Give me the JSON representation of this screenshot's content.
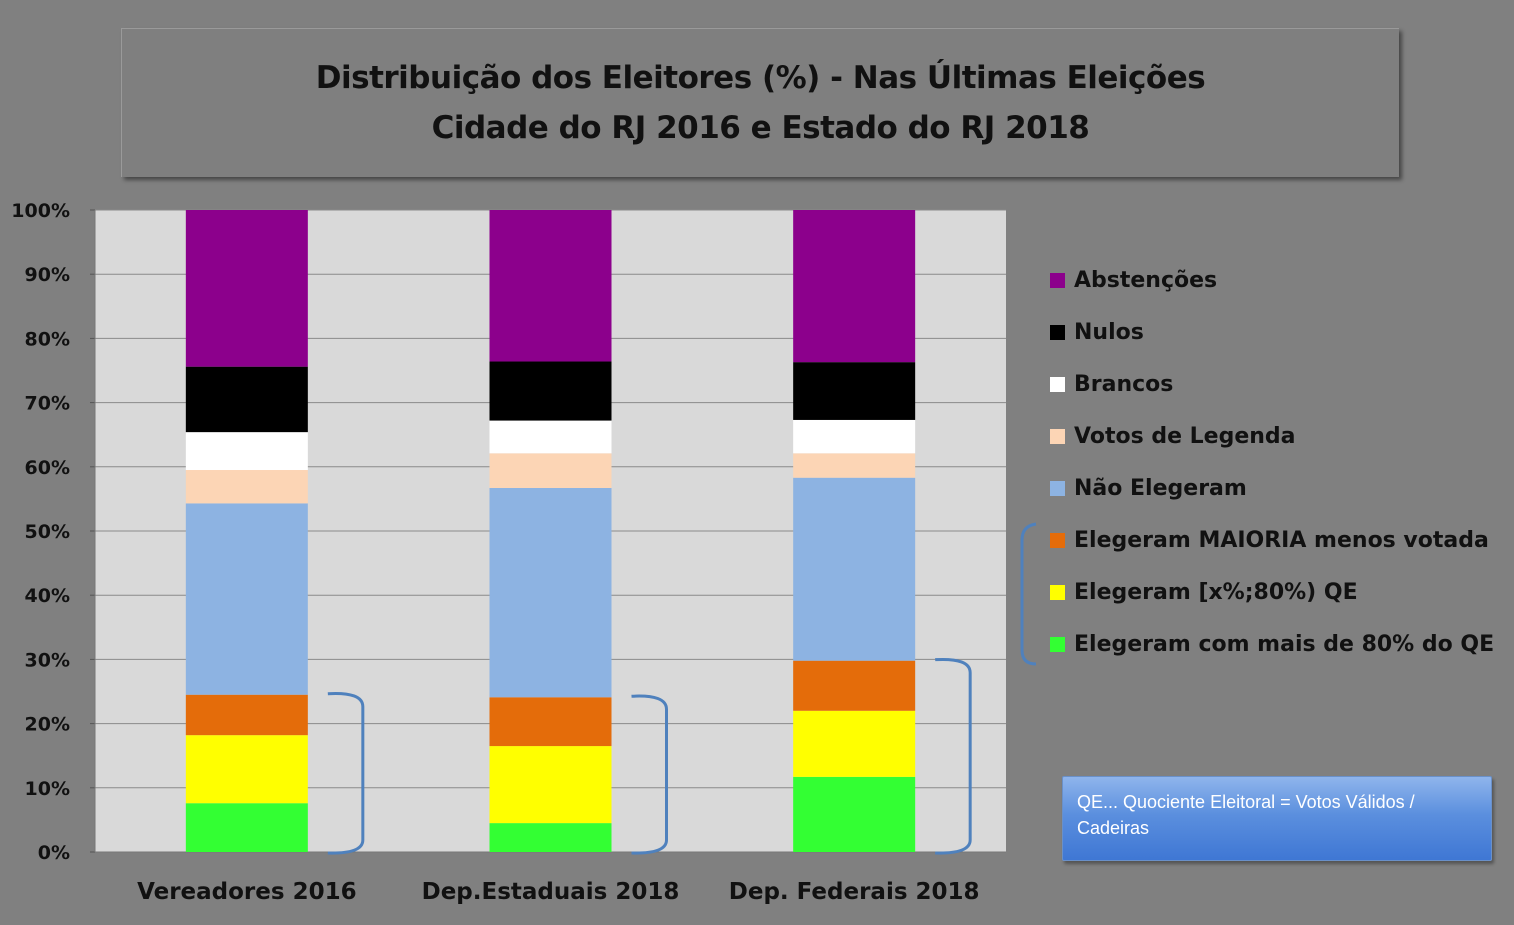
{
  "chart_title": {
    "line1": "Distribuição dos Eleitores (%) - Nas Últimas Eleições",
    "line2": "Cidade do RJ 2016 e Estado do RJ 2018"
  },
  "chart_data": {
    "type": "bar",
    "stacked": true,
    "categories": [
      "Vereadores 2016",
      "Dep.Estaduais 2018",
      "Dep. Federais 2018"
    ],
    "ylim": [
      0,
      100
    ],
    "yticks": [
      "0%",
      "10%",
      "20%",
      "30%",
      "40%",
      "50%",
      "60%",
      "70%",
      "80%",
      "90%",
      "100%"
    ],
    "grid": true,
    "legend_position": "right",
    "series": [
      {
        "name": "Elegeram com mais de 80% do QE",
        "color": "#33ff33",
        "values": [
          7.6,
          4.5,
          11.7
        ]
      },
      {
        "name": "Elegeram [x%;80%) QE",
        "color": "#ffff00",
        "values": [
          10.6,
          12.0,
          10.3
        ]
      },
      {
        "name": "Elegeram MAIORIA menos votada",
        "color": "#e46c0a",
        "values": [
          6.3,
          7.6,
          7.8
        ]
      },
      {
        "name": "Não Elegeram",
        "color": "#8db3e2",
        "values": [
          29.8,
          32.6,
          28.5
        ]
      },
      {
        "name": "Votos de Legenda",
        "color": "#fcd5b5",
        "values": [
          5.2,
          5.4,
          3.8
        ]
      },
      {
        "name": "Brancos",
        "color": "#ffffff",
        "values": [
          5.9,
          5.1,
          5.2
        ]
      },
      {
        "name": "Nulos",
        "color": "#000000",
        "values": [
          10.2,
          9.2,
          9.0
        ]
      },
      {
        "name": "Abstenções",
        "color": "#8c008c",
        "values": [
          24.4,
          23.6,
          23.7
        ]
      }
    ],
    "plot_background": "#d9d9d9",
    "bracket_color": "#4f81bd"
  },
  "note": {
    "text": "QE... Quociente Eleitoral = Votos Válidos / Cadeiras"
  }
}
